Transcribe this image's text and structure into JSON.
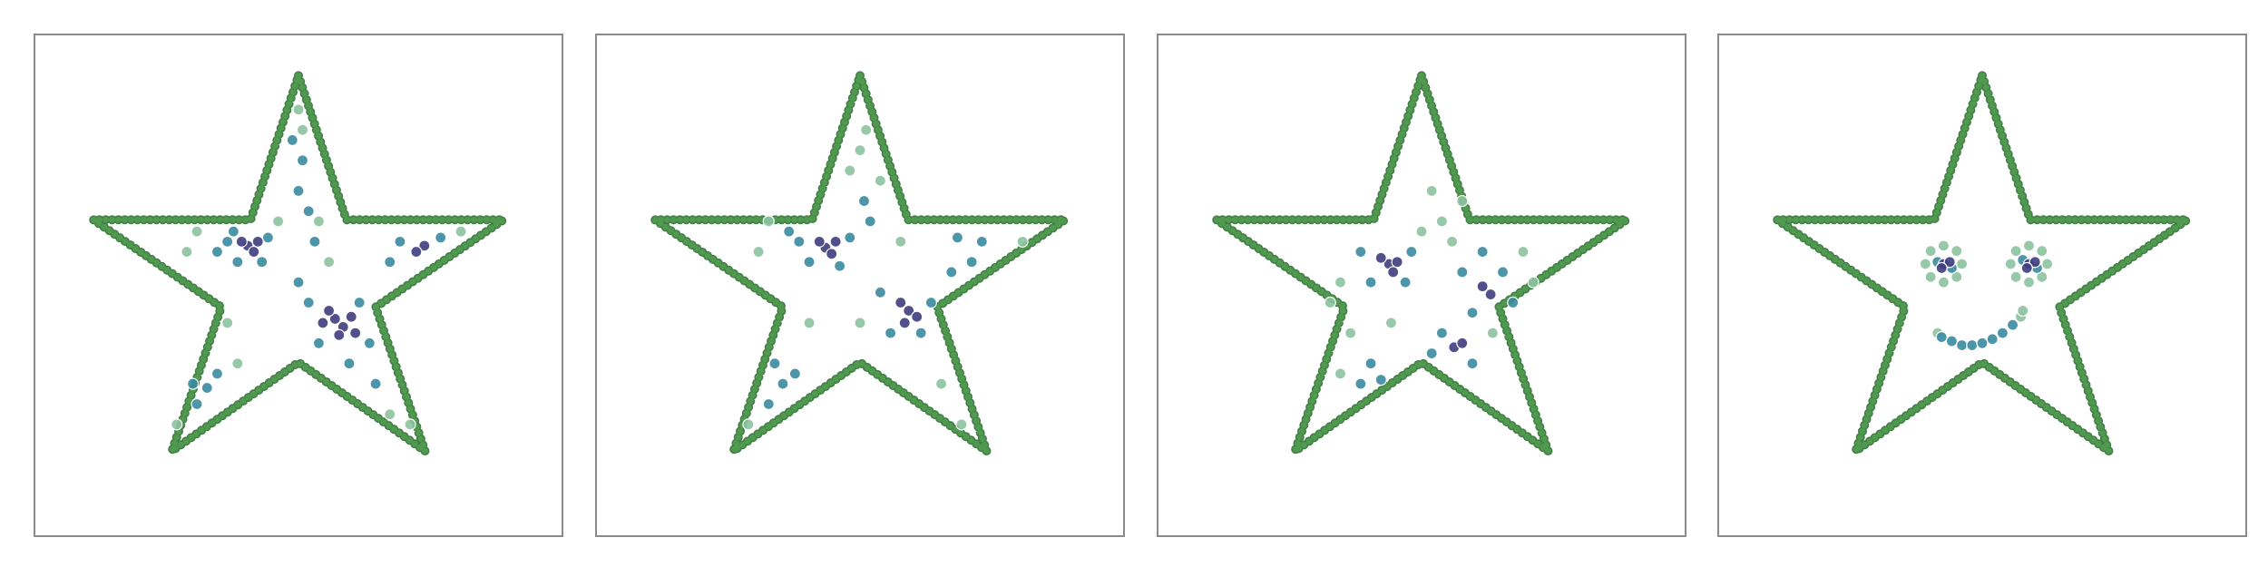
{
  "chart_data": [
    {
      "type": "scatter",
      "xlim": [
        -1.3,
        1.3
      ],
      "ylim": [
        -1.35,
        1.12
      ],
      "outline": {
        "color": "#4f9a4f",
        "x": [
          0,
          0.236,
          1.01,
          0.38,
          0.623,
          0,
          -0.623,
          -0.38,
          -1.01,
          -0.236,
          0
        ],
        "y": [
          0.917,
          0.208,
          0.208,
          -0.222,
          -0.931,
          -0.494,
          -0.931,
          -0.222,
          0.208,
          0.208,
          0.917
        ]
      },
      "series": [
        {
          "color": "#8cc3a0",
          "x": [
            0.0,
            0.02,
            -0.1,
            0.15,
            -0.55,
            -0.5,
            -0.35,
            -0.3,
            0.45,
            0.55,
            0.8,
            -0.6,
            0.1
          ],
          "y": [
            0.75,
            0.65,
            0.2,
            0.0,
            0.05,
            0.15,
            -0.3,
            -0.5,
            -0.75,
            -0.8,
            0.15,
            -0.8,
            0.2
          ]
        },
        {
          "color": "#3a8ba0",
          "x": [
            -0.35,
            -0.3,
            -0.15,
            -0.4,
            -0.18,
            -0.32,
            0.05,
            0.3,
            0.35,
            0.1,
            0.25,
            0.38,
            0.0,
            0.5,
            0.7,
            0.45,
            -0.45,
            -0.5,
            -0.4,
            -0.52,
            0.0,
            0.02,
            -0.03,
            0.05,
            0.08
          ],
          "y": [
            0.1,
            0.0,
            0.12,
            0.05,
            0.0,
            0.15,
            -0.2,
            -0.2,
            -0.4,
            -0.4,
            -0.5,
            -0.6,
            -0.1,
            0.1,
            0.12,
            0.0,
            -0.62,
            -0.7,
            -0.55,
            -0.6,
            0.35,
            0.5,
            0.6,
            0.25,
            0.1
          ]
        },
        {
          "color": "#3f3d7e",
          "x": [
            0.18,
            0.22,
            0.15,
            0.26,
            0.2,
            0.12,
            0.28,
            -0.25,
            -0.22,
            -0.28,
            -0.2,
            0.62,
            0.58
          ],
          "y": [
            -0.28,
            -0.32,
            -0.24,
            -0.27,
            -0.36,
            -0.3,
            -0.35,
            0.08,
            0.05,
            0.1,
            0.1,
            0.08,
            0.05
          ]
        }
      ]
    },
    {
      "type": "scatter",
      "xlim": [
        -1.3,
        1.3
      ],
      "ylim": [
        -1.35,
        1.12
      ],
      "outline": {
        "color": "#4f9a4f",
        "x": [
          0,
          0.236,
          1.01,
          0.38,
          0.623,
          0,
          -0.623,
          -0.38,
          -1.01,
          -0.236,
          0
        ],
        "y": [
          0.917,
          0.208,
          0.208,
          -0.222,
          -0.931,
          -0.494,
          -0.931,
          -0.222,
          0.208,
          0.208,
          0.917
        ]
      },
      "series": [
        {
          "color": "#8cc3a0",
          "x": [
            0.0,
            0.03,
            -0.05,
            0.1,
            -0.45,
            -0.5,
            0.0,
            0.4,
            0.5,
            0.8,
            -0.55,
            -0.25,
            0.2
          ],
          "y": [
            0.55,
            0.65,
            0.45,
            0.4,
            0.2,
            0.05,
            -0.3,
            -0.6,
            -0.8,
            0.1,
            -0.8,
            -0.3,
            0.1
          ]
        },
        {
          "color": "#3a8ba0",
          "x": [
            -0.3,
            -0.25,
            -0.05,
            -0.35,
            -0.1,
            0.1,
            0.35,
            0.3,
            0.15,
            0.45,
            0.55,
            0.6,
            0.48,
            -0.38,
            -0.45,
            -0.32,
            -0.42,
            0.02,
            0.05
          ],
          "y": [
            0.1,
            0.0,
            0.12,
            0.15,
            -0.02,
            -0.15,
            -0.2,
            -0.35,
            -0.35,
            -0.05,
            0.0,
            0.1,
            0.12,
            -0.6,
            -0.7,
            -0.55,
            -0.5,
            0.3,
            0.2
          ]
        },
        {
          "color": "#3f3d7e",
          "x": [
            -0.17,
            -0.14,
            -0.2,
            -0.12,
            0.24,
            0.2,
            0.28,
            0.22
          ],
          "y": [
            0.07,
            0.04,
            0.1,
            0.1,
            -0.24,
            -0.2,
            -0.27,
            -0.3
          ]
        }
      ]
    },
    {
      "type": "scatter",
      "xlim": [
        -1.3,
        1.3
      ],
      "ylim": [
        -1.35,
        1.12
      ],
      "outline": {
        "color": "#4f9a4f",
        "x": [
          0,
          0.236,
          1.01,
          0.38,
          0.623,
          0,
          -0.623,
          -0.38,
          -1.01,
          -0.236,
          0
        ],
        "y": [
          0.917,
          0.208,
          0.208,
          -0.222,
          -0.931,
          -0.494,
          -0.931,
          -0.222,
          0.208,
          0.208,
          0.917
        ]
      },
      "series": [
        {
          "color": "#8cc3a0",
          "x": [
            0.1,
            0.2,
            0.05,
            0.15,
            -0.4,
            -0.45,
            -0.35,
            0.5,
            0.55,
            -0.15,
            0.35,
            0.0,
            -0.4
          ],
          "y": [
            0.2,
            0.3,
            0.35,
            0.1,
            -0.1,
            -0.2,
            -0.35,
            0.05,
            -0.1,
            -0.3,
            -0.35,
            0.15,
            -0.55
          ]
        },
        {
          "color": "#3a8ba0",
          "x": [
            -0.3,
            -0.05,
            -0.25,
            -0.08,
            0.2,
            0.4,
            0.45,
            0.25,
            0.1,
            0.25,
            0.05,
            -0.25,
            -0.3,
            -0.2,
            0.3
          ],
          "y": [
            0.05,
            0.05,
            -0.1,
            -0.1,
            -0.05,
            -0.05,
            -0.2,
            -0.25,
            -0.35,
            -0.5,
            -0.45,
            -0.5,
            -0.6,
            -0.58,
            0.05
          ]
        },
        {
          "color": "#3f3d7e",
          "x": [
            -0.16,
            -0.12,
            -0.2,
            -0.14,
            0.3,
            0.34,
            0.16,
            0.2
          ],
          "y": [
            -0.01,
            0.0,
            0.02,
            -0.05,
            -0.12,
            -0.16,
            -0.42,
            -0.4
          ]
        }
      ]
    },
    {
      "type": "scatter",
      "xlim": [
        -1.3,
        1.3
      ],
      "ylim": [
        -1.35,
        1.12
      ],
      "outline": {
        "color": "#4f9a4f",
        "x": [
          0,
          0.236,
          1.01,
          0.38,
          0.623,
          0,
          -0.623,
          -0.38,
          -1.01,
          -0.236,
          0
        ],
        "y": [
          0.917,
          0.208,
          0.208,
          -0.222,
          -0.931,
          -0.494,
          -0.931,
          -0.222,
          0.208,
          0.208,
          0.917
        ]
      },
      "series": [
        {
          "color": "#8cc3a0",
          "x": [
            -0.1,
            -0.126,
            -0.19,
            -0.254,
            -0.28,
            -0.254,
            -0.19,
            -0.126,
            0.32,
            0.294,
            0.23,
            0.166,
            0.14,
            0.166,
            0.23,
            0.294,
            -0.22,
            0.19,
            0.2
          ],
          "y": [
            -0.01,
            0.054,
            0.08,
            0.054,
            -0.01,
            -0.074,
            -0.1,
            -0.074,
            -0.01,
            0.054,
            0.08,
            0.054,
            -0.01,
            -0.074,
            -0.1,
            -0.074,
            -0.35,
            -0.27,
            -0.24
          ]
        },
        {
          "color": "#3a8ba0",
          "x": [
            -0.15,
            0.27,
            -0.22,
            0.2,
            -0.2,
            -0.15,
            -0.1,
            -0.05,
            0.0,
            0.05,
            0.1,
            0.15
          ],
          "y": [
            -0.03,
            -0.03,
            0.0,
            0.01,
            -0.37,
            -0.39,
            -0.41,
            -0.41,
            -0.4,
            -0.38,
            -0.35,
            -0.31
          ]
        },
        {
          "color": "#3f3d7e",
          "x": [
            -0.19,
            -0.16,
            0.23,
            0.26,
            -0.2,
            0.22
          ],
          "y": [
            -0.01,
            0.0,
            -0.01,
            0.0,
            -0.03,
            -0.03
          ]
        }
      ]
    }
  ]
}
